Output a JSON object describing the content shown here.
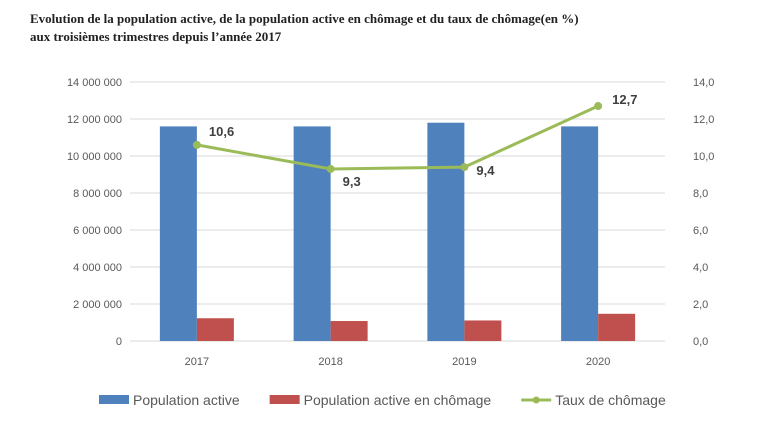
{
  "chart_data": {
    "type": "bar+line",
    "title_line1": "Evolution de la population active, de la population active en chômage et du taux de chômage(en %)",
    "title_line2": "aux troisièmes trimestres depuis l’année 2017",
    "categories": [
      "2017",
      "2018",
      "2019",
      "2020"
    ],
    "series": [
      {
        "name": "Population active",
        "type": "bar",
        "axis": "left",
        "color": "#4F81BD",
        "values": [
          11600000,
          11600000,
          11800000,
          11600000
        ]
      },
      {
        "name": "Population active en chômage",
        "type": "bar",
        "axis": "left",
        "color": "#C0504D",
        "values": [
          1230000,
          1080000,
          1110000,
          1470000
        ]
      },
      {
        "name": "Taux de chômage",
        "type": "line",
        "axis": "right",
        "color": "#9BBB59",
        "values": [
          10.6,
          9.3,
          9.4,
          12.7
        ],
        "data_labels": [
          "10,6",
          "9,3",
          "9,4",
          "12,7"
        ]
      }
    ],
    "left_axis": {
      "ylim": [
        0,
        14000000
      ],
      "ticks": [
        0,
        2000000,
        4000000,
        6000000,
        8000000,
        10000000,
        12000000,
        14000000
      ],
      "tick_labels": [
        "0",
        "2 000 000",
        "4 000 000",
        "6 000 000",
        "8 000 000",
        "10 000 000",
        "12 000 000",
        "14 000 000"
      ]
    },
    "right_axis": {
      "ylim": [
        0,
        14
      ],
      "ticks": [
        0,
        2,
        4,
        6,
        8,
        10,
        12,
        14
      ],
      "tick_labels": [
        "0,0",
        "2,0",
        "4,0",
        "6,0",
        "8,0",
        "10,0",
        "12,0",
        "14,0"
      ]
    },
    "xlabel": "",
    "ylabel": "",
    "grid": true,
    "legend_position": "bottom"
  }
}
